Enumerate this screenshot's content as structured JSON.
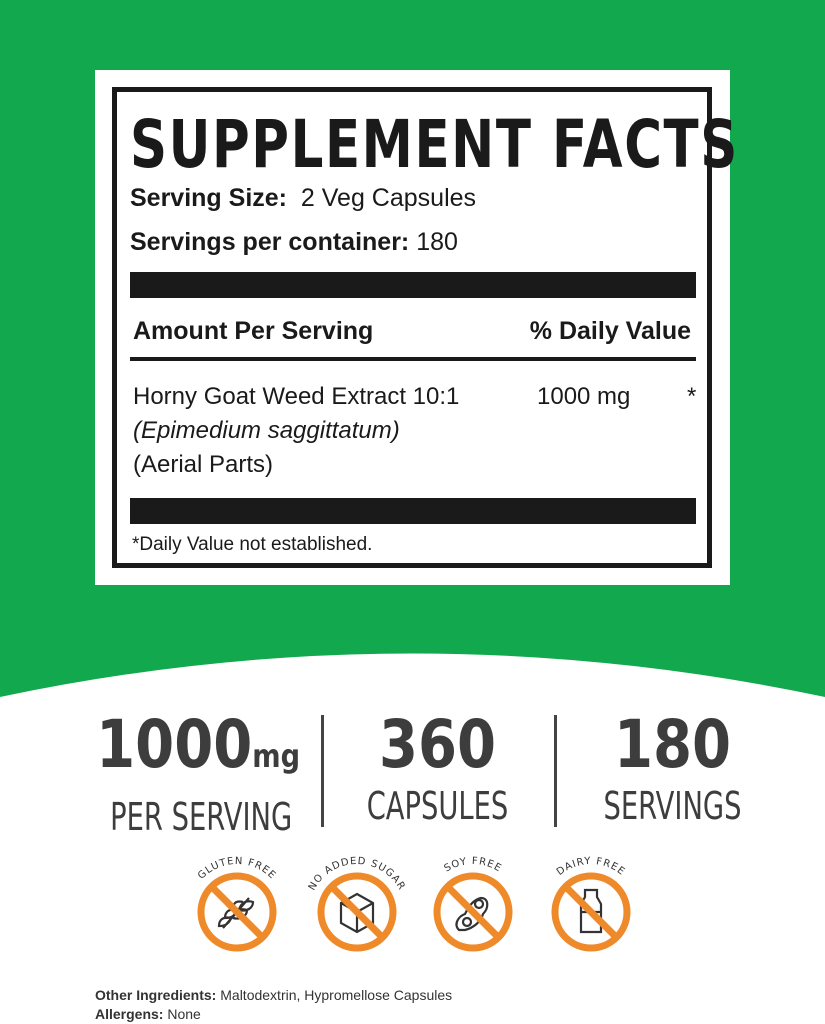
{
  "colors": {
    "green": "#12a94e",
    "orange": "#ef8a2a",
    "ink": "#1a1a1a",
    "stat": "#3d3d3d"
  },
  "facts": {
    "title": "SUPPLEMENT FACTS",
    "serving_size_label": "Serving Size:",
    "serving_size_value": "2 Veg Capsules",
    "servings_label": "Servings per container:",
    "servings_value": "180",
    "amount_header": "Amount Per Serving",
    "dv_header": "% Daily Value",
    "ingredient": {
      "name": "Horny Goat Weed Extract 10:1",
      "latin": "(Epimedium saggittatum)",
      "part": "(Aerial Parts)",
      "amount": "1000 mg",
      "dv": "*"
    },
    "footnote": "*Daily Value not established."
  },
  "stats": [
    {
      "value": "1000",
      "unit": "mg",
      "label": "PER SERVING"
    },
    {
      "value": "360",
      "unit": "",
      "label": "CAPSULES"
    },
    {
      "value": "180",
      "unit": "",
      "label": "SERVINGS"
    }
  ],
  "badges": [
    {
      "label": "GLUTEN FREE",
      "icon": "wheat-icon"
    },
    {
      "label": "NO ADDED SUGAR",
      "icon": "sugar-cube-icon"
    },
    {
      "label": "SOY FREE",
      "icon": "soybean-icon"
    },
    {
      "label": "DAIRY FREE",
      "icon": "milk-bottle-icon"
    }
  ],
  "footer": {
    "other_label": "Other Ingredients:",
    "other_value": "Maltodextrin, Hypromellose Capsules",
    "allergens_label": "Allergens:",
    "allergens_value": "None"
  }
}
